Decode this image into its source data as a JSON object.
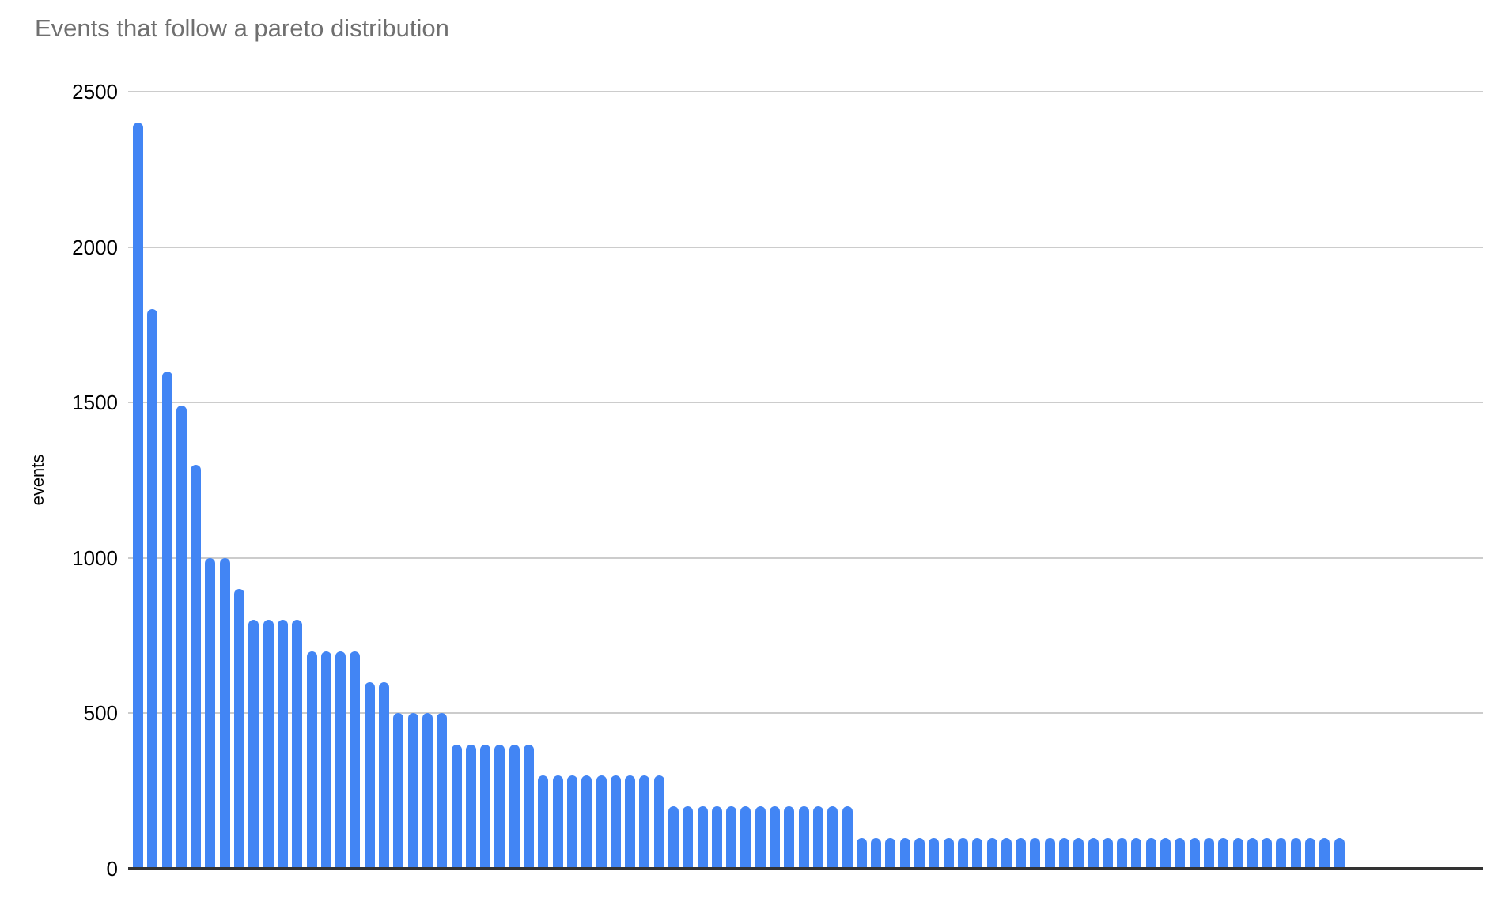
{
  "chart": {
    "title": "Events that follow a pareto distribution",
    "title_color": "#6f6f6f",
    "ylabel": "events",
    "bar_color": "#4285F4",
    "gridline_color": "#cccccc",
    "axis_line_color": "#333333"
  },
  "chart_data": {
    "type": "bar",
    "title": "Events that follow a pareto distribution",
    "xlabel": "",
    "ylabel": "events",
    "ylim": [
      0,
      2500
    ],
    "yticks": [
      0,
      500,
      1000,
      1500,
      2000,
      2500
    ],
    "grid": true,
    "legend": "none",
    "bar_color": "#4285F4",
    "values": [
      2400,
      1800,
      1600,
      1490,
      1300,
      1000,
      1000,
      900,
      800,
      800,
      800,
      800,
      700,
      700,
      700,
      700,
      600,
      600,
      500,
      500,
      500,
      500,
      400,
      400,
      400,
      400,
      400,
      400,
      300,
      300,
      300,
      300,
      300,
      300,
      300,
      300,
      300,
      200,
      200,
      200,
      200,
      200,
      200,
      200,
      200,
      200,
      200,
      200,
      200,
      200,
      100,
      100,
      100,
      100,
      100,
      100,
      100,
      100,
      100,
      100,
      100,
      100,
      100,
      100,
      100,
      100,
      100,
      100,
      100,
      100,
      100,
      100,
      100,
      100,
      100,
      100,
      100,
      100,
      100,
      100,
      100,
      100,
      100,
      100
    ]
  }
}
